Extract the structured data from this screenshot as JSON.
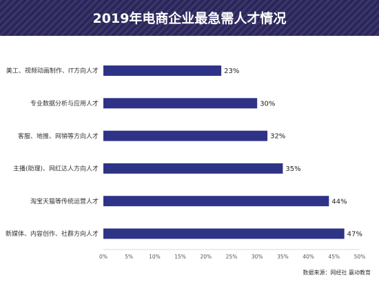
{
  "header": {
    "title": "2019年电商企业最急需人才情况"
  },
  "source": "数据来源：网经社  赢动教育",
  "colors": {
    "bar": "#2e3387",
    "header_bg": "#2a2656",
    "header_stripe": "#3b366e"
  },
  "chart_data": {
    "type": "bar",
    "orientation": "horizontal",
    "title": "2019年电商企业最急需人才情况",
    "categories": [
      "美工、视频动画制作、IT方向人才",
      "专业数据分析与应用人才",
      "客服、地推、网销等方向人才",
      "主播(助理)、网红达人方向人才",
      "淘宝天猫等传统运营人才",
      "新媒体、内容创作、社群方向人才"
    ],
    "values": [
      23,
      30,
      32,
      35,
      44,
      47
    ],
    "value_labels": [
      "23%",
      "30%",
      "32%",
      "35%",
      "44%",
      "47%"
    ],
    "xlim": [
      0,
      50
    ],
    "xticks": [
      "0%",
      "5%",
      "10%",
      "15%",
      "20%",
      "25%",
      "30%",
      "35%",
      "40%",
      "45%",
      "50%"
    ],
    "grid": false
  }
}
